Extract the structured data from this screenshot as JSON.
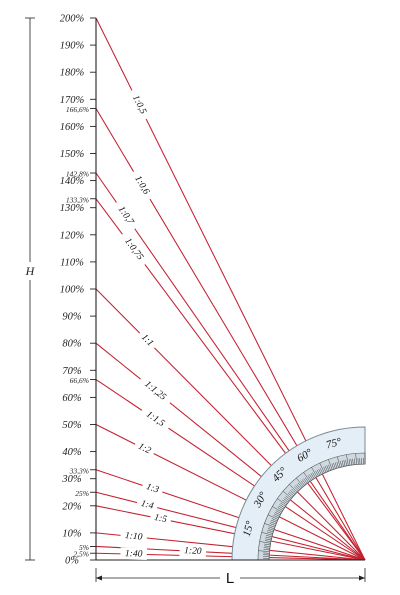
{
  "axes": {
    "vertical_label": "H",
    "horizontal_label": "L"
  },
  "y_ticks": [
    {
      "label": "0%",
      "value": 0,
      "small": false
    },
    {
      "label": "2,5%",
      "value": 2.5,
      "small": true
    },
    {
      "label": "5%",
      "value": 5,
      "small": true
    },
    {
      "label": "10%",
      "value": 10,
      "small": false
    },
    {
      "label": "20%",
      "value": 20,
      "small": false
    },
    {
      "label": "25%",
      "value": 25,
      "small": true
    },
    {
      "label": "30%",
      "value": 30,
      "small": false
    },
    {
      "label": "33,3%",
      "value": 33.3,
      "small": true
    },
    {
      "label": "40%",
      "value": 40,
      "small": false
    },
    {
      "label": "50%",
      "value": 50,
      "small": false
    },
    {
      "label": "60%",
      "value": 60,
      "small": false
    },
    {
      "label": "66,6%",
      "value": 66.6,
      "small": true
    },
    {
      "label": "70%",
      "value": 70,
      "small": false
    },
    {
      "label": "80%",
      "value": 80,
      "small": false
    },
    {
      "label": "90%",
      "value": 90,
      "small": false
    },
    {
      "label": "100%",
      "value": 100,
      "small": false
    },
    {
      "label": "110%",
      "value": 110,
      "small": false
    },
    {
      "label": "120%",
      "value": 120,
      "small": false
    },
    {
      "label": "130%",
      "value": 130,
      "small": false
    },
    {
      "label": "133,3%",
      "value": 133.3,
      "small": true
    },
    {
      "label": "140%",
      "value": 140,
      "small": false
    },
    {
      "label": "142,8%",
      "value": 142.8,
      "small": true
    },
    {
      "label": "150%",
      "value": 150,
      "small": false
    },
    {
      "label": "160%",
      "value": 160,
      "small": false
    },
    {
      "label": "166,6%",
      "value": 166.6,
      "small": true
    },
    {
      "label": "170%",
      "value": 170,
      "small": false
    },
    {
      "label": "180%",
      "value": 180,
      "small": false
    },
    {
      "label": "190%",
      "value": 190,
      "small": false
    },
    {
      "label": "200%",
      "value": 200,
      "small": false
    }
  ],
  "slope_lines": [
    {
      "label": "1:0,5",
      "percent": 200
    },
    {
      "label": "1:0,6",
      "percent": 166.6
    },
    {
      "label": "1:0,7",
      "percent": 142.8
    },
    {
      "label": "1:0,75",
      "percent": 133.3
    },
    {
      "label": "1:1",
      "percent": 100
    },
    {
      "label": "1:1,25",
      "percent": 80
    },
    {
      "label": "1:1,5",
      "percent": 66.6
    },
    {
      "label": "1:2",
      "percent": 50
    },
    {
      "label": "1:3",
      "percent": 33.3
    },
    {
      "label": "1:4",
      "percent": 25
    },
    {
      "label": "1:5",
      "percent": 20
    },
    {
      "label": "1:10",
      "percent": 10
    },
    {
      "label": "1:20",
      "percent": 5
    },
    {
      "label": "1:40",
      "percent": 2.5
    }
  ],
  "protractor": {
    "angles": [
      {
        "label": "15°",
        "deg": 15
      },
      {
        "label": "30°",
        "deg": 30
      },
      {
        "label": "45°",
        "deg": 45
      },
      {
        "label": "60°",
        "deg": 60
      },
      {
        "label": "75°",
        "deg": 75
      }
    ]
  },
  "colors": {
    "line": "#c4202f",
    "axis": "#222222",
    "protractor_fill": "#e3eef6",
    "protractor_stroke": "#7a8a96"
  }
}
